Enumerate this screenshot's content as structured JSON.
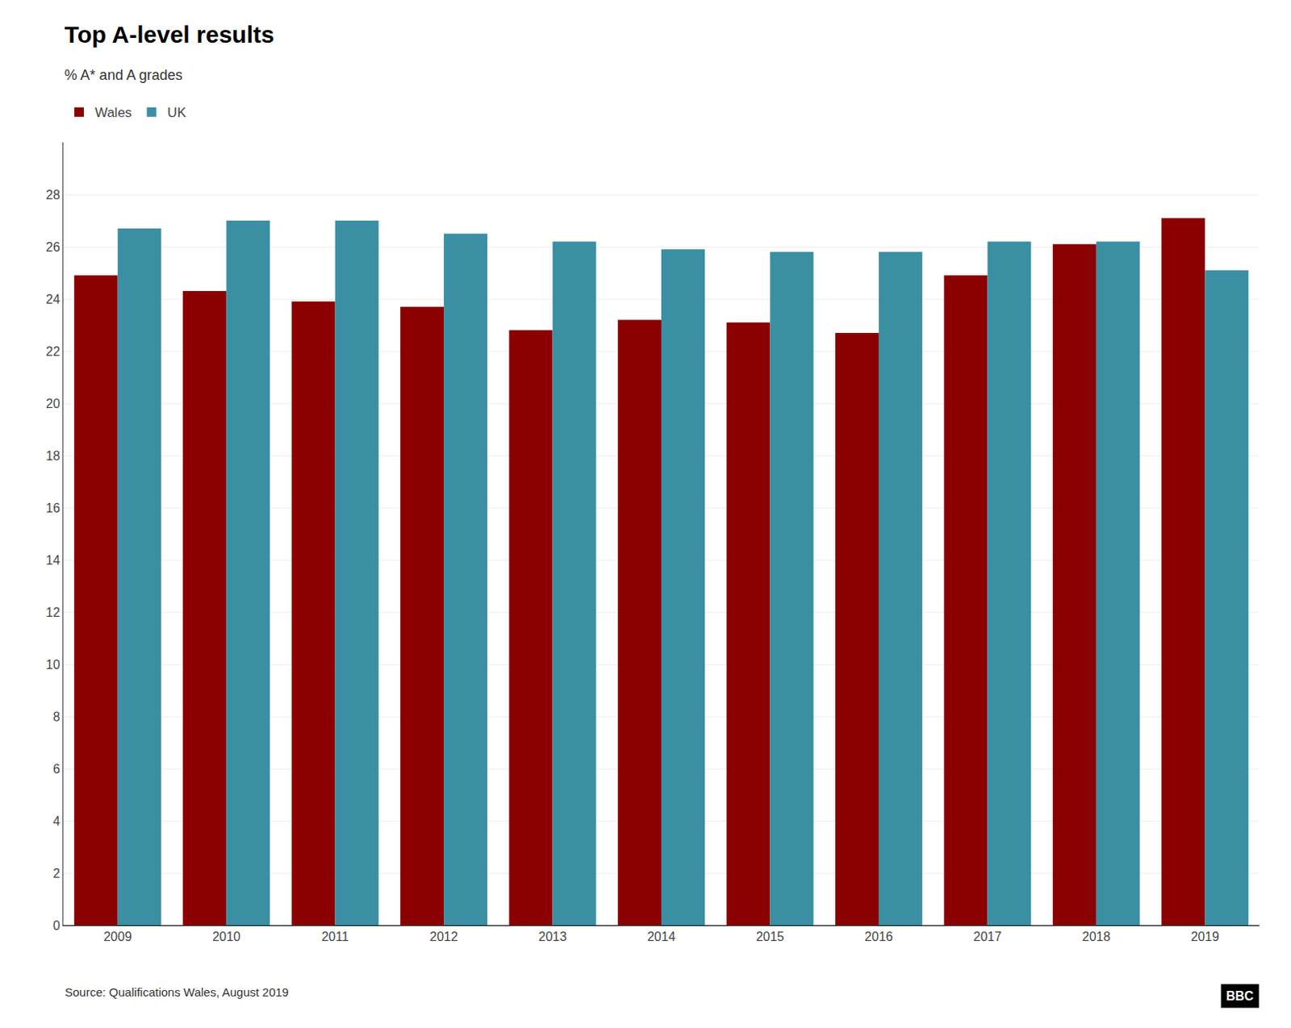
{
  "chart_data": {
    "type": "bar",
    "title": "Top A-level results",
    "subtitle": "% A* and A grades",
    "categories": [
      "2009",
      "2010",
      "2011",
      "2012",
      "2013",
      "2014",
      "2015",
      "2016",
      "2017",
      "2018",
      "2019"
    ],
    "series": [
      {
        "name": "Wales",
        "color": "#8B0000",
        "values": [
          24.9,
          24.3,
          23.9,
          23.7,
          22.8,
          23.2,
          23.1,
          22.7,
          24.9,
          26.1,
          27.1
        ]
      },
      {
        "name": "UK",
        "color": "#3A8FA3",
        "values": [
          26.7,
          27.0,
          27.0,
          26.5,
          26.2,
          25.9,
          25.8,
          25.8,
          26.2,
          26.2,
          25.1
        ]
      }
    ],
    "ylim": [
      0,
      30
    ],
    "yticks": [
      0,
      2,
      4,
      6,
      8,
      10,
      12,
      14,
      16,
      18,
      20,
      22,
      24,
      26,
      28
    ],
    "grid": true,
    "legend": "top left",
    "annotations": [
      "Source: Qualifications Wales, August 2019",
      "BBC"
    ]
  }
}
